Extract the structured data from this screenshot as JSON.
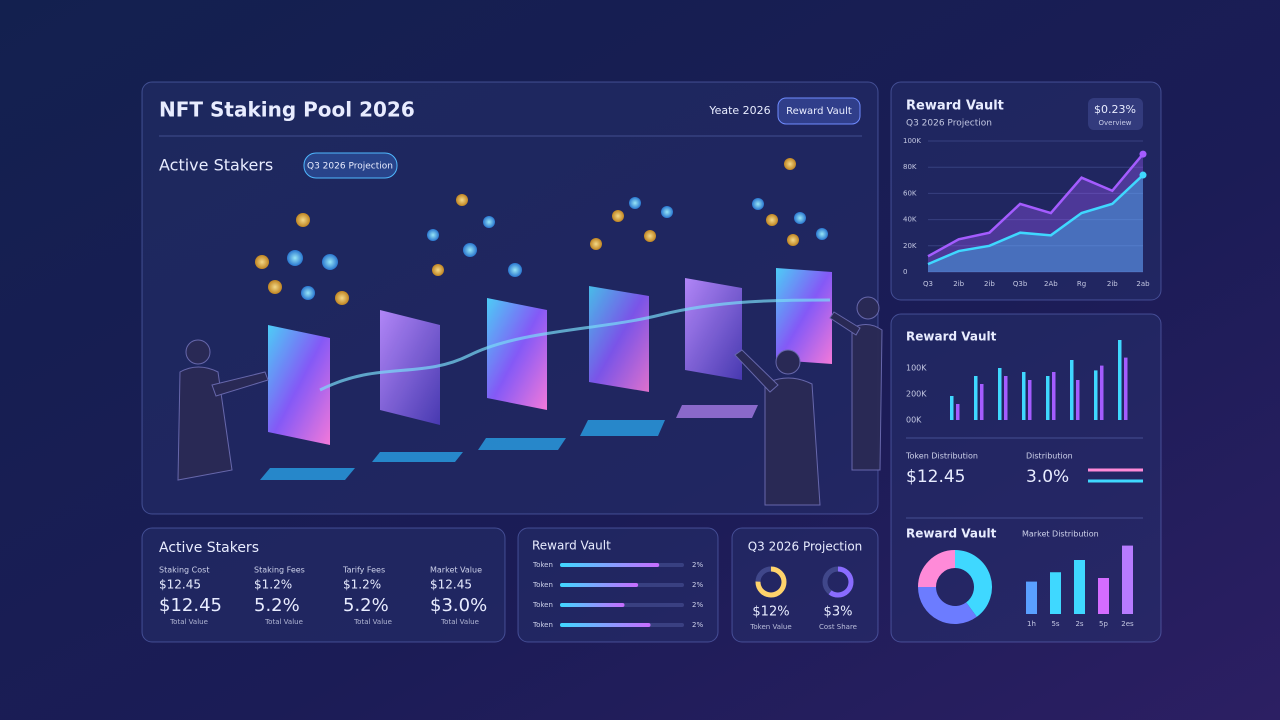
{
  "header": {
    "title": "NFT Staking Pool 2026",
    "meta": "Yeate 2026",
    "button": "Reward Vault"
  },
  "hero": {
    "heading": "Active Stakers",
    "pill": "Q3 2026 Projection"
  },
  "vault_chart": {
    "title": "Reward Vault",
    "subtitle": "Q3 2026 Projection",
    "badge_value": "$0.23%",
    "badge_label": "Overview",
    "ylim": [
      0,
      100000
    ],
    "yticks": [
      {
        "value": 0,
        "label": "0"
      },
      {
        "value": 20000,
        "label": "20K"
      },
      {
        "value": 40000,
        "label": "40K"
      },
      {
        "value": 60000,
        "label": "60K"
      },
      {
        "value": 80000,
        "label": "80K"
      },
      {
        "value": 100000,
        "label": "100K"
      }
    ],
    "x": [
      "Q3",
      "2ib",
      "2ib",
      "Q3b",
      "2Ab",
      "Rg",
      "2ib",
      "2ab"
    ],
    "series": [
      {
        "color": "#a45cff",
        "values": [
          12000,
          25000,
          30000,
          52000,
          45000,
          72000,
          62000,
          90000
        ]
      },
      {
        "color": "#3fd8ff",
        "values": [
          6000,
          16000,
          20000,
          30000,
          28000,
          45000,
          52000,
          74000
        ]
      }
    ]
  },
  "bar_panel": {
    "title": "Reward Vault",
    "scale_labels": [
      "100K",
      "200K",
      "00K"
    ],
    "ylim": [
      0,
      100
    ],
    "series": [
      {
        "color": "#3fd8ff",
        "values": [
          30,
          55,
          65,
          60,
          55,
          75,
          62,
          100
        ]
      },
      {
        "color": "#a45cff",
        "values": [
          20,
          45,
          55,
          50,
          60,
          50,
          68,
          78
        ]
      }
    ]
  },
  "token": {
    "label1": "Token Distribution",
    "value1": "$12.45",
    "label2": "Distribution",
    "value2": "3.0%"
  },
  "donut_panel": {
    "title": "Reward Vault",
    "chart_title": "Market Distribution",
    "segments": [
      {
        "color": "#3fd8ff",
        "value": 40
      },
      {
        "color": "#6c7cff",
        "value": 35
      },
      {
        "color": "#ff8ad8",
        "value": 25
      }
    ],
    "ylim": [
      0,
      100
    ],
    "x": [
      "1h",
      "5s",
      "2s",
      "5p",
      "2es"
    ],
    "bars": [
      {
        "color": "#5aa0ff",
        "value": 45
      },
      {
        "color": "#3fd8ff",
        "value": 58
      },
      {
        "color": "#3fd8ff",
        "value": 75
      },
      {
        "color": "#d46cff",
        "value": 50
      },
      {
        "color": "#b77bff",
        "value": 95
      }
    ]
  },
  "stakers": {
    "title": "Active Stakers",
    "columns": [
      {
        "label": "Staking Cost",
        "small": "$12.45",
        "big": "$12.45",
        "foot": "Total Value"
      },
      {
        "label": "Staking Fees",
        "small": "$1.2%",
        "big": "5.2%",
        "foot": "Total Value"
      },
      {
        "label": "Tarify Fees",
        "small": "$1.2%",
        "big": "5.2%",
        "foot": "Total Value"
      },
      {
        "label": "Market Value",
        "small": "$12.45",
        "big": "$3.0%",
        "foot": "Total Value"
      }
    ]
  },
  "reward_list": {
    "title": "Reward Vault",
    "rows": [
      {
        "label": "Token",
        "fill": 80,
        "pct": "2%"
      },
      {
        "label": "Token",
        "fill": 63,
        "pct": "2%"
      },
      {
        "label": "Token",
        "fill": 52,
        "pct": "2%"
      },
      {
        "label": "Token",
        "fill": 73,
        "pct": "2%"
      }
    ]
  },
  "projection": {
    "title": "Q3 2026 Projection",
    "items": [
      {
        "value": "$12%",
        "label": "Token Value",
        "ring": 75
      },
      {
        "value": "$3%",
        "label": "Cost Share",
        "ring": 60
      }
    ]
  }
}
